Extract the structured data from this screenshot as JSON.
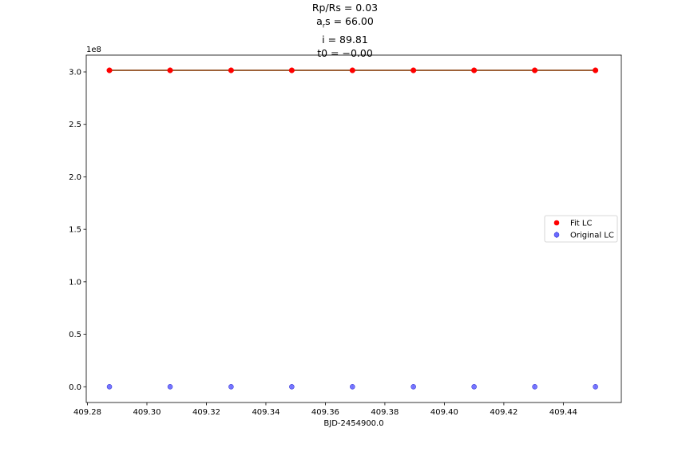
{
  "chart_data": {
    "type": "scatter",
    "title_lines": [
      "Rp/Rs = 0.03",
      "a_rs = 66.00",
      "i = 89.81",
      "t0 = −0.00"
    ],
    "xlabel": "BJD-2454900.0",
    "ylabel": "",
    "y_offset_label": "1e8",
    "xlim": [
      409.2796,
      409.4595
    ],
    "ylim": [
      -15000000,
      316000000
    ],
    "x_tick_values": [
      409.28,
      409.3,
      409.32,
      409.34,
      409.36,
      409.38,
      409.4,
      409.42,
      409.44
    ],
    "x_tick_labels": [
      "409.28",
      "409.30",
      "409.32",
      "409.34",
      "409.36",
      "409.38",
      "409.40",
      "409.42",
      "409.44"
    ],
    "y_tick_values": [
      0,
      50000000,
      100000000,
      150000000,
      200000000,
      250000000,
      300000000
    ],
    "y_tick_labels": [
      "0.0",
      "0.5",
      "1.0",
      "1.5",
      "2.0",
      "2.5",
      "3.0"
    ],
    "grid": false,
    "legend_position": "center-right",
    "x": [
      409.2874,
      409.3078,
      409.3283,
      409.3487,
      409.3691,
      409.3896,
      409.41,
      409.4304,
      409.4508
    ],
    "series": [
      {
        "name": "Fit LC",
        "kind": "line+markers",
        "color": "#ff0000",
        "line_color": "#8b4513",
        "values": [
          301500000,
          301500000,
          301500000,
          301500000,
          301500000,
          301500000,
          301500000,
          301500000,
          301500000
        ]
      },
      {
        "name": "Original LC",
        "kind": "errorbar-markers",
        "color": "#6a6aff",
        "edge_color": "#3b3bd9",
        "values": [
          0,
          0,
          0,
          0,
          0,
          0,
          0,
          0,
          0
        ]
      }
    ]
  }
}
